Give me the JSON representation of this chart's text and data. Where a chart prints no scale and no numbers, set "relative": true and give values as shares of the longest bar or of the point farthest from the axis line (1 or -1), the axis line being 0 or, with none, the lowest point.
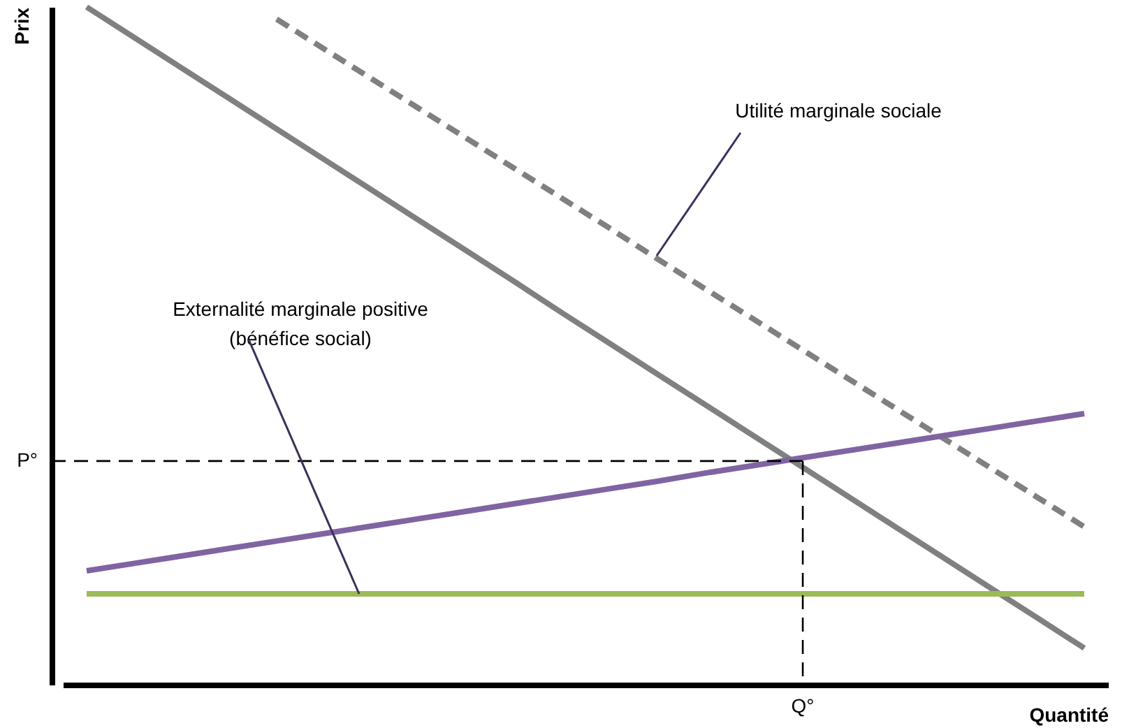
{
  "chart_data": {
    "type": "line",
    "relative": true,
    "xlabel": "Quantité",
    "ylabel": "Prix",
    "categories": [
      null,
      null,
      null,
      null,
      null,
      null,
      null,
      null,
      null,
      null,
      null,
      null,
      null,
      null,
      null,
      null,
      null,
      null,
      null,
      null,
      null,
      null
    ],
    "series": [
      {
        "color": "#808080",
        "line_style": "solid",
        "values": [
          1.0,
          0.955,
          0.91,
          0.865,
          0.82,
          0.775,
          0.73,
          0.685,
          0.64,
          0.595,
          0.549,
          0.504,
          0.459,
          0.414,
          0.369,
          0.324,
          0.279,
          0.234,
          0.189,
          0.144,
          0.099,
          0.054
        ]
      },
      {
        "color": "#808080",
        "line_style": "dashed",
        "values": [
          null,
          null,
          null,
          null,
          0.982,
          0.938,
          0.894,
          0.85,
          0.806,
          0.762,
          0.718,
          0.674,
          0.629,
          0.585,
          0.541,
          0.497,
          0.453,
          0.409,
          0.365,
          0.321,
          0.277,
          0.233
        ]
      },
      {
        "color": "#8064a2",
        "line_style": "solid",
        "values": [
          0.168,
          0.179,
          0.19,
          0.201,
          0.212,
          0.223,
          0.234,
          0.245,
          0.256,
          0.267,
          0.278,
          0.289,
          0.3,
          0.312,
          0.323,
          0.334,
          0.345,
          0.356,
          0.367,
          0.378,
          0.389,
          0.4
        ]
      },
      {
        "color": "#9bbb59",
        "line_style": "solid",
        "values": [
          0.134,
          0.134,
          0.134,
          0.134,
          0.134,
          0.134,
          0.134,
          0.134,
          0.134,
          0.134,
          0.134,
          0.134,
          0.134,
          0.134,
          0.134,
          0.134,
          0.134,
          0.134,
          0.134,
          0.134,
          0.134,
          0.134
        ]
      }
    ],
    "ref_lines": [
      {
        "axis": "y",
        "value": 0.33,
        "label": "P°",
        "color": "#000000",
        "line_style": "dashed"
      }
    ],
    "annotations": [
      "Utilité marginale sociale",
      "Externalité marginale positive\n(bénéfice social)",
      "Q°"
    ]
  }
}
